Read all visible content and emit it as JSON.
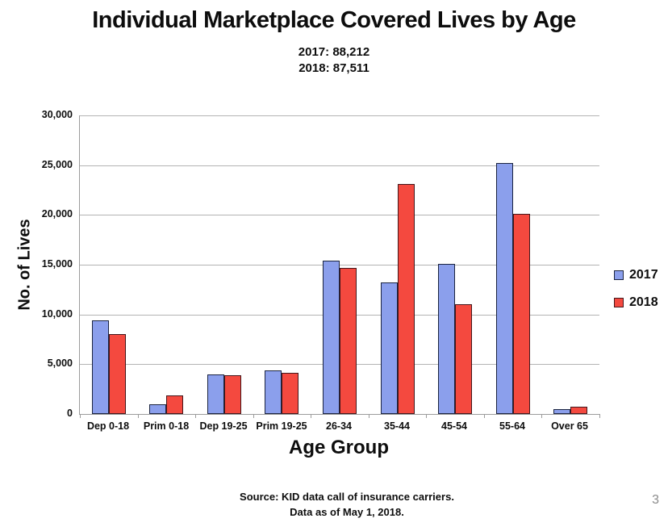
{
  "chart_data": {
    "type": "bar",
    "title": "Individual Marketplace Covered Lives by Age",
    "subtitle_lines": [
      "2017: 88,212",
      "2018: 87,511"
    ],
    "categories": [
      "Dep 0-18",
      "Prim 0-18",
      "Dep 19-25",
      "Prim 19-25",
      "26-34",
      "35-44",
      "45-54",
      "55-64",
      "Over 65"
    ],
    "series": [
      {
        "name": "2017",
        "color": "#8b9fec",
        "border_color": "#1b2440",
        "values": [
          9400,
          1000,
          4000,
          4400,
          15400,
          13200,
          15100,
          25200,
          500
        ]
      },
      {
        "name": "2018",
        "color": "#f4493f",
        "border_color": "#43161a",
        "values": [
          8000,
          1850,
          3900,
          4100,
          14700,
          23100,
          11000,
          20100,
          750
        ]
      }
    ],
    "xlabel": "Age Group",
    "ylabel": "No. of Lives",
    "ylim": [
      0,
      30000
    ],
    "ytick_step": 5000,
    "grid": "horizontal",
    "legend_position": "right"
  },
  "footer": {
    "line1": "Source: KID data call of insurance carriers.",
    "line2": "Data as of May 1, 2018."
  },
  "page_number": "3",
  "colors": {
    "background": "#ffffff",
    "gridline": "#b3b3b3",
    "axis_line": "#9c9c9c",
    "text": "#0d0d0d",
    "page_number": "#8c8c8c",
    "series_2017": "#8b9fec",
    "series_2018": "#f4493f"
  }
}
